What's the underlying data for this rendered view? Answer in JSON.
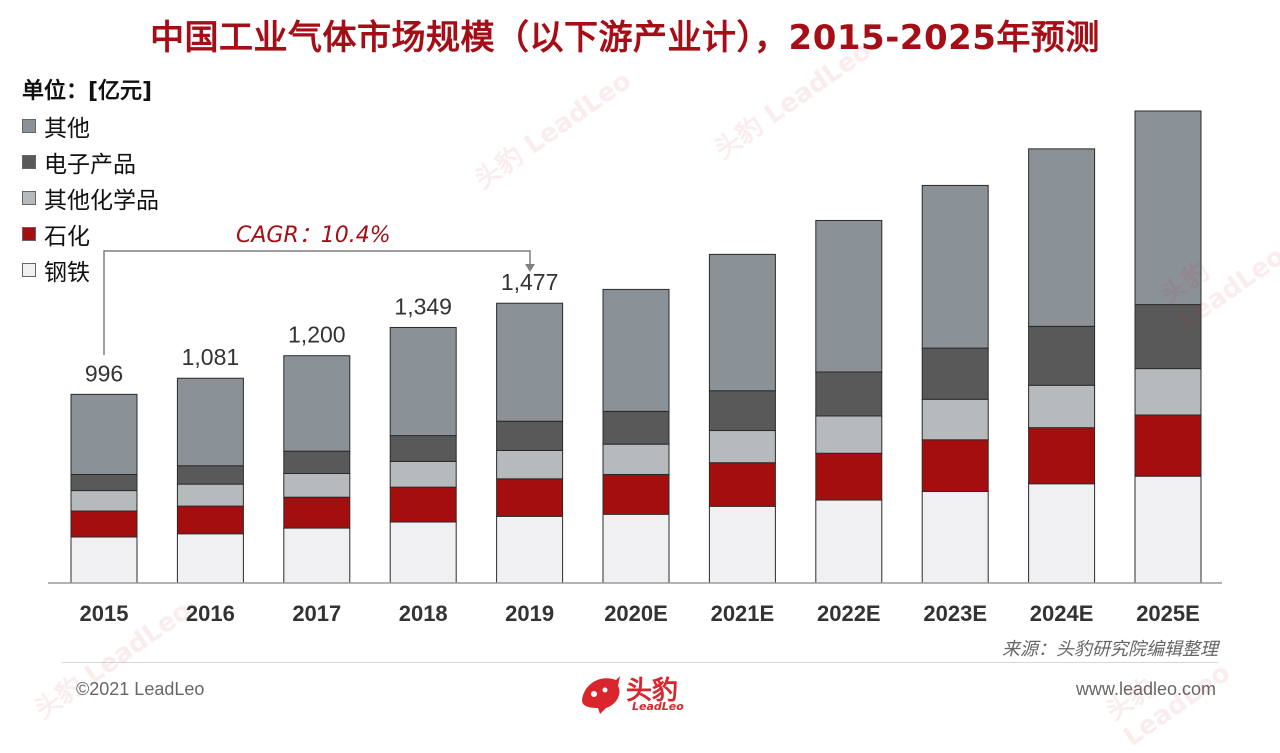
{
  "title": "中国工业气体市场规模（以下游产业计），2015-2025年预测",
  "unit_label": "单位：[亿元]",
  "legend": [
    {
      "label": "其他",
      "color": "#8A9197"
    },
    {
      "label": "电子产品",
      "color": "#595959"
    },
    {
      "label": "其他化学品",
      "color": "#B6BABD"
    },
    {
      "label": "石化",
      "color": "#A50E0E"
    },
    {
      "label": "钢铁",
      "color": "#F0F0F2"
    }
  ],
  "cagr": "CAGR：10.4%",
  "source": "来源：头豹研究院编辑整理",
  "footer": {
    "copyright": "©2021 LeadLeo",
    "website": "www.leadleo.com",
    "logo_cn": "头豹",
    "logo_en": "LeadLeo"
  },
  "watermark_text": "头豹 LeadLeo",
  "chart_data": {
    "type": "bar",
    "stacked": true,
    "categories": [
      "2015",
      "2016",
      "2017",
      "2018",
      "2019",
      "2020E",
      "2021E",
      "2022E",
      "2023E",
      "2024E",
      "2025E"
    ],
    "totals": [
      996,
      1081,
      1200,
      1349,
      1477,
      1550,
      1735,
      1914,
      2099,
      2292,
      2492
    ],
    "total_labels": [
      "996",
      "1,081",
      "1,200",
      "1,349",
      "1,477",
      "",
      "",
      "",
      "",
      "",
      ""
    ],
    "series": [
      {
        "name": "钢铁",
        "color": "#F0F0F2",
        "values": [
          243,
          260,
          290,
          322,
          352,
          363,
          405,
          438,
          483,
          524,
          564
        ]
      },
      {
        "name": "石化",
        "color": "#A50E0E",
        "values": [
          137,
          146,
          163,
          184,
          198,
          210,
          230,
          247,
          273,
          296,
          323
        ]
      },
      {
        "name": "其他化学品",
        "color": "#B6BABD",
        "values": [
          108,
          116,
          125,
          136,
          150,
          160,
          170,
          197,
          214,
          224,
          245
        ]
      },
      {
        "name": "电子产品",
        "color": "#595959",
        "values": [
          85,
          97,
          118,
          136,
          154,
          173,
          210,
          232,
          270,
          311,
          338
        ]
      },
      {
        "name": "其他",
        "color": "#8A9197",
        "values": [
          423,
          462,
          504,
          571,
          623,
          644,
          720,
          800,
          859,
          937,
          1022
        ]
      }
    ],
    "ylim": [
      0,
      2550
    ],
    "grid": false,
    "legend_position": "top-left"
  }
}
